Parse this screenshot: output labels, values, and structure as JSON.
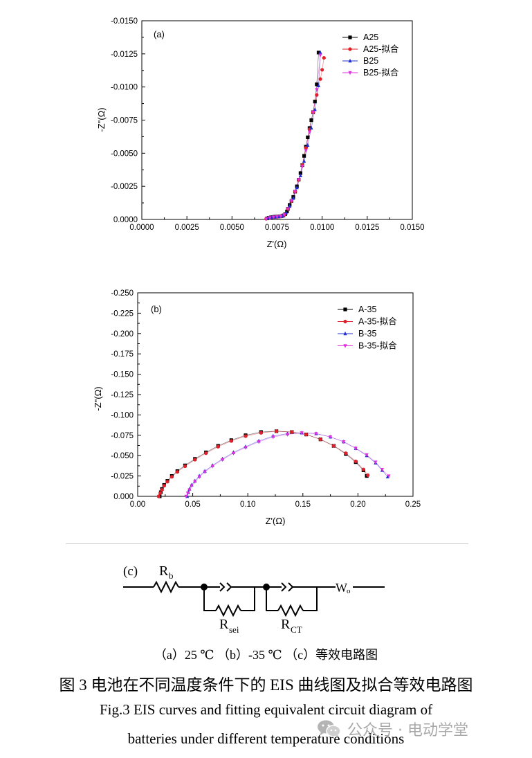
{
  "chart_data": [
    {
      "type": "scatter",
      "panel_label": "(a)",
      "xlabel": "Z'(Ω)",
      "ylabel": "-Z\"(Ω)",
      "xlim": [
        0,
        0.015
      ],
      "ylim": [
        0,
        -0.015
      ],
      "x_ticks": [
        "0.0000",
        "0.0025",
        "0.0050",
        "0.0075",
        "0.0100",
        "0.0125",
        "0.0150"
      ],
      "y_ticks": [
        "-0.0150",
        "-0.0125",
        "-0.0100",
        "-0.0075",
        "-0.0050",
        "-0.0025",
        "0.0000"
      ],
      "legend_position": "top-right",
      "series": [
        {
          "name": "A25",
          "color": "#000000",
          "marker": "square",
          "x": [
            0.00695,
            0.00705,
            0.00715,
            0.00725,
            0.00735,
            0.00745,
            0.00755,
            0.00765,
            0.00775,
            0.00785,
            0.00795,
            0.00805,
            0.0081,
            0.0082,
            0.0083,
            0.0084,
            0.0085,
            0.0086,
            0.0087,
            0.0088,
            0.0089,
            0.009,
            0.0091,
            0.0092,
            0.0093,
            0.0094,
            0.0095,
            0.0096,
            0.0097,
            0.0098
          ],
          "y": [
            -8e-05,
            -0.00012,
            -0.00015,
            -0.00018,
            -0.0002,
            -0.00021,
            -0.00022,
            -0.00023,
            -0.00025,
            -0.0003,
            -0.0004,
            -0.0006,
            -0.0008,
            -0.0011,
            -0.0014,
            -0.0017,
            -0.0021,
            -0.0025,
            -0.003,
            -0.0035,
            -0.0041,
            -0.0048,
            -0.0055,
            -0.0062,
            -0.0069,
            -0.0075,
            -0.0081,
            -0.0089,
            -0.0102,
            -0.0126
          ]
        },
        {
          "name": "A25-拟合",
          "color": "#e0202a",
          "marker": "circle",
          "x": [
            0.0069,
            0.0071,
            0.0073,
            0.0075,
            0.0077,
            0.0079,
            0.0081,
            0.0083,
            0.0085,
            0.0087,
            0.0089,
            0.0091,
            0.0093,
            0.0095,
            0.0097,
            0.0099,
            0.01,
            0.0101
          ],
          "y": [
            -5e-05,
            -0.00013,
            -0.00018,
            -0.00021,
            -0.00024,
            -0.00035,
            -0.0008,
            -0.0014,
            -0.0021,
            -0.003,
            -0.0041,
            -0.0054,
            -0.0068,
            -0.0081,
            -0.0094,
            -0.0106,
            -0.0113,
            -0.0122
          ]
        },
        {
          "name": "B25",
          "color": "#2030d0",
          "marker": "triangle",
          "x": [
            0.007,
            0.0072,
            0.0074,
            0.0076,
            0.0078,
            0.008,
            0.0082,
            0.0084,
            0.0086,
            0.0088,
            0.009,
            0.0092,
            0.0094,
            0.0096,
            0.0098,
            0.0099
          ],
          "y": [
            -0.0001,
            -0.00016,
            -0.0002,
            -0.00022,
            -0.00026,
            -0.0005,
            -0.001,
            -0.0016,
            -0.0024,
            -0.0033,
            -0.0044,
            -0.0056,
            -0.0069,
            -0.0083,
            -0.0101,
            -0.0126
          ]
        },
        {
          "name": "B25-拟合",
          "color": "#e030e0",
          "marker": "triangle-down",
          "x": [
            0.0069,
            0.0071,
            0.0073,
            0.0075,
            0.0077,
            0.0079,
            0.0081,
            0.0083,
            0.0085,
            0.0087,
            0.0089,
            0.0091,
            0.0093,
            0.0095,
            0.0097,
            0.0099
          ],
          "y": [
            -5e-05,
            -0.00012,
            -0.00017,
            -0.0002,
            -0.00023,
            -0.00034,
            -0.0008,
            -0.0014,
            -0.0021,
            -0.003,
            -0.004,
            -0.0052,
            -0.0066,
            -0.0081,
            -0.0098,
            -0.0124
          ]
        }
      ]
    },
    {
      "type": "scatter",
      "panel_label": "(b)",
      "xlabel": "Z'(Ω)",
      "ylabel": "-Z\"(Ω)",
      "xlim": [
        0,
        0.25
      ],
      "ylim": [
        0,
        -0.25
      ],
      "x_ticks": [
        "0.00",
        "0.05",
        "0.10",
        "0.15",
        "0.20",
        "0.25"
      ],
      "y_ticks": [
        "-0.250",
        "-0.225",
        "-0.200",
        "-0.175",
        "-0.150",
        "-0.125",
        "-0.100",
        "-0.075",
        "-0.050",
        "-0.025",
        "0.000"
      ],
      "legend_position": "top-right",
      "series": [
        {
          "name": "A-35",
          "color": "#000000",
          "marker": "square",
          "x": [
            0.02,
            0.021,
            0.022,
            0.024,
            0.027,
            0.031,
            0.036,
            0.043,
            0.052,
            0.062,
            0.073,
            0.085,
            0.098,
            0.112,
            0.126,
            0.14,
            0.153,
            0.166,
            0.178,
            0.189,
            0.198,
            0.205,
            0.208
          ],
          "y": [
            -0.0,
            -0.005,
            -0.009,
            -0.014,
            -0.019,
            -0.025,
            -0.031,
            -0.038,
            -0.046,
            -0.054,
            -0.062,
            -0.069,
            -0.075,
            -0.079,
            -0.08,
            -0.079,
            -0.076,
            -0.07,
            -0.062,
            -0.052,
            -0.042,
            -0.032,
            -0.025
          ]
        },
        {
          "name": "A-35-拟合",
          "color": "#e0202a",
          "marker": "circle",
          "x": [
            0.019,
            0.0205,
            0.022,
            0.024,
            0.027,
            0.031,
            0.036,
            0.043,
            0.052,
            0.062,
            0.073,
            0.085,
            0.098,
            0.112,
            0.126,
            0.14,
            0.153,
            0.166,
            0.178,
            0.189,
            0.198,
            0.205,
            0.209
          ],
          "y": [
            -0.0,
            -0.004,
            -0.008,
            -0.013,
            -0.018,
            -0.024,
            -0.03,
            -0.037,
            -0.045,
            -0.053,
            -0.061,
            -0.068,
            -0.074,
            -0.078,
            -0.08,
            -0.079,
            -0.076,
            -0.07,
            -0.062,
            -0.053,
            -0.043,
            -0.033,
            -0.026
          ]
        },
        {
          "name": "B-35",
          "color": "#2030d0",
          "marker": "triangle",
          "x": [
            0.045,
            0.046,
            0.047,
            0.049,
            0.052,
            0.056,
            0.061,
            0.068,
            0.077,
            0.087,
            0.098,
            0.11,
            0.123,
            0.136,
            0.149,
            0.162,
            0.175,
            0.187,
            0.198,
            0.208,
            0.216,
            0.222,
            0.227
          ],
          "y": [
            -0.0,
            -0.005,
            -0.009,
            -0.014,
            -0.019,
            -0.025,
            -0.031,
            -0.038,
            -0.046,
            -0.054,
            -0.061,
            -0.068,
            -0.074,
            -0.077,
            -0.078,
            -0.077,
            -0.073,
            -0.067,
            -0.059,
            -0.05,
            -0.041,
            -0.032,
            -0.024
          ]
        },
        {
          "name": "B-35-拟合",
          "color": "#e030e0",
          "marker": "triangle-down",
          "x": [
            0.044,
            0.0455,
            0.047,
            0.049,
            0.052,
            0.056,
            0.061,
            0.068,
            0.077,
            0.087,
            0.098,
            0.11,
            0.123,
            0.136,
            0.149,
            0.162,
            0.175,
            0.187,
            0.198,
            0.208,
            0.216,
            0.222,
            0.228
          ],
          "y": [
            -0.0,
            -0.004,
            -0.008,
            -0.013,
            -0.018,
            -0.024,
            -0.03,
            -0.037,
            -0.045,
            -0.053,
            -0.06,
            -0.067,
            -0.073,
            -0.076,
            -0.078,
            -0.077,
            -0.073,
            -0.067,
            -0.059,
            -0.051,
            -0.042,
            -0.033,
            -0.025
          ]
        }
      ]
    }
  ],
  "circuit": {
    "panel_label": "(c)",
    "components": [
      {
        "type": "resistor",
        "label": "R",
        "subscript": "b"
      },
      {
        "type": "cpe-parallel-resistor",
        "label": "R",
        "subscript": "sei"
      },
      {
        "type": "cpe-parallel-resistor",
        "label": "R",
        "subscript": "CT"
      },
      {
        "type": "warburg",
        "label": "W",
        "subscript": "o"
      }
    ]
  },
  "captions": {
    "subtitle": "（a）25 ℃ （b）-35 ℃ （c）等效电路图",
    "chinese": "图 3  电池在不同温度条件下的 EIS 曲线图及拟合等效电路图",
    "english_line1": "Fig.3 EIS curves and fitting equivalent circuit diagram of",
    "english_line2": "batteries under different temperature conditions"
  },
  "watermark": {
    "icon": "wechat-icon",
    "text": "公众号 · 电动学堂"
  }
}
